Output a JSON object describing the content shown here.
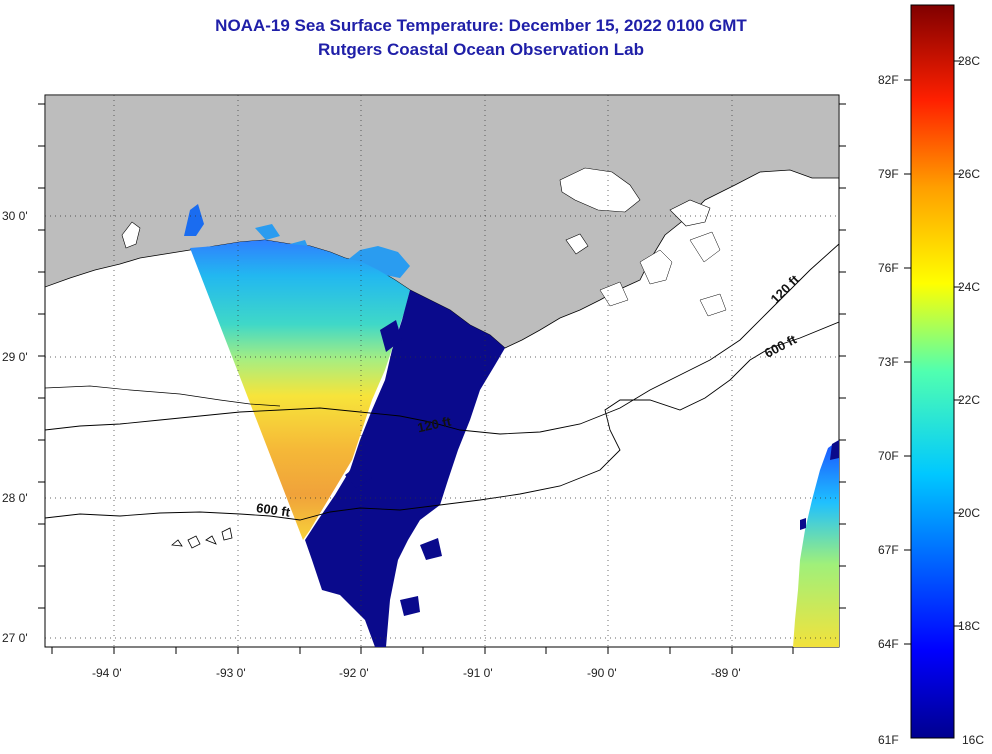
{
  "title_line1": "NOAA-19 Sea Surface Temperature:  December 15, 2022 0100 GMT",
  "title_line2": "Rutgers Coastal Ocean Observation Lab",
  "lat_ticks": [
    "30 0'",
    "29 0'",
    "28 0'",
    "27 0'"
  ],
  "lon_ticks": [
    "-94 0'",
    "-93 0'",
    "-92 0'",
    "-91 0'",
    "-90 0'",
    "-89 0'"
  ],
  "contours": {
    "c120": "120 ft",
    "c600_east": "600 ft",
    "c120_mid": "120 ft",
    "c600_west": "600 ft"
  },
  "colorbar": {
    "f_labels": [
      "82F",
      "79F",
      "76F",
      "73F",
      "70F",
      "67F",
      "64F",
      "61F"
    ],
    "c_labels": [
      "28C",
      "26C",
      "24C",
      "22C",
      "20C",
      "18C",
      "16C"
    ],
    "min_c": 16,
    "max_c": 29.5
  },
  "colors": {
    "land": "#bdbdbd",
    "ocean": "#ffffff",
    "cloud": "#0a0a8c",
    "title": "#1f1fa8"
  }
}
